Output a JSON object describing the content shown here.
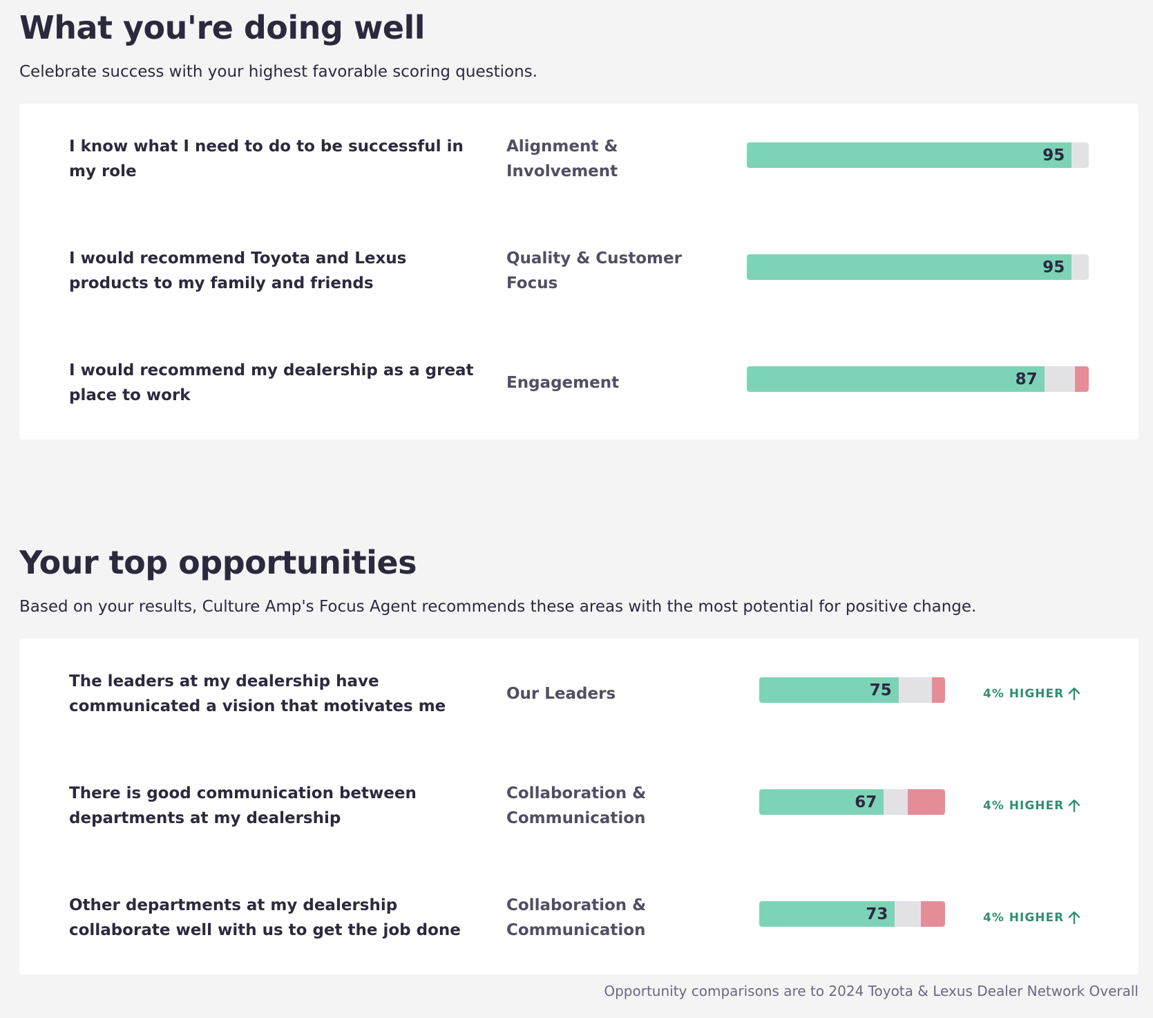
{
  "well": {
    "title": "What you're doing well",
    "description": "Celebrate success with your highest favorable scoring questions.",
    "rows": [
      {
        "question": "I know what I need to do to be successful in my role",
        "factor": "Alignment & Involvement",
        "score": "95",
        "favorable_pct": 95,
        "neutral_pct": 5,
        "unfavorable_pct": 0
      },
      {
        "question": "I would recommend Toyota and Lexus products to my family and friends",
        "factor": "Quality & Customer Focus",
        "score": "95",
        "favorable_pct": 95,
        "neutral_pct": 5,
        "unfavorable_pct": 0
      },
      {
        "question": "I would recommend my dealership as a great place to work",
        "factor": "Engagement",
        "score": "87",
        "favorable_pct": 87,
        "neutral_pct": 9,
        "unfavorable_pct": 4
      }
    ]
  },
  "opportunities": {
    "title": "Your top opportunities",
    "description": "Based on your results, Culture Amp's Focus Agent recommends these areas with the most potential for positive change.",
    "rows": [
      {
        "question": "The leaders at my dealership have communicated a vision that motivates me",
        "factor": "Our Leaders",
        "score": "75",
        "favorable_pct": 75,
        "neutral_pct": 18,
        "unfavorable_pct": 7,
        "delta": "4% HIGHER"
      },
      {
        "question": "There is good communication between departments at my dealership",
        "factor": "Collaboration & Communication",
        "score": "67",
        "favorable_pct": 67,
        "neutral_pct": 13,
        "unfavorable_pct": 20,
        "delta": "4% HIGHER"
      },
      {
        "question": "Other departments at my dealership collaborate well with us to get the job done",
        "factor": "Collaboration & Communication",
        "score": "73",
        "favorable_pct": 73,
        "neutral_pct": 14,
        "unfavorable_pct": 13,
        "delta": "4% HIGHER"
      }
    ],
    "footnote": "Opportunity comparisons are to 2024 Toyota & Lexus Dealer Network Overall"
  },
  "colors": {
    "favorable": "#7dd3b7",
    "neutral": "#e2e2e6",
    "unfavorable": "#e58d96",
    "delta_text": "#2f8f72"
  },
  "icons": {
    "delta_icon": "arrow-up-icon"
  }
}
